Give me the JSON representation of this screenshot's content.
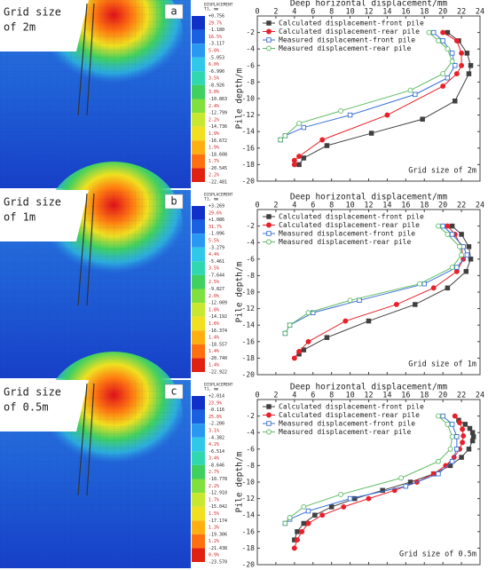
{
  "panels": [
    {
      "letter": "a",
      "label_lines": [
        "Grid size",
        "of 2m"
      ],
      "legend_header": [
        "DISPLACEMENT",
        "T1, mm"
      ],
      "legend_values": [
        "+0.756",
        "-1.180",
        "-3.117",
        "-5.053",
        "-6.990",
        "-8.926",
        "-10.863",
        "-12.799",
        "-14.736",
        "-16.672",
        "-18.608",
        "-20.545",
        "-22.481"
      ],
      "legend_percents": [
        "29.7%",
        "16.5%",
        "5.0%",
        "6.0%",
        "3.5%",
        "3.0%",
        "2.4%",
        "2.2%",
        "1.9%",
        "1.9%",
        "1.7%",
        "2.2%"
      ]
    },
    {
      "letter": "b",
      "label_lines": [
        "Grid size",
        "of 1m"
      ],
      "legend_header": [
        "DISPLACEMENT",
        "T1, mm"
      ],
      "legend_values": [
        "+3.269",
        "+1.086",
        "-1.096",
        "-3.279",
        "-5.461",
        "-7.644",
        "-9.827",
        "-12.009",
        "-14.192",
        "-16.374",
        "-18.557",
        "-20.740",
        "-22.922"
      ],
      "legend_percents": [
        "29.6%",
        "31.7%",
        "5.5%",
        "4.4%",
        "3.5%",
        "2.5%",
        "2.0%",
        "1.8%",
        "1.6%",
        "1.4%",
        "1.4%",
        "1.4%"
      ]
    },
    {
      "letter": "c",
      "label_lines": [
        "Grid size",
        "of 0.5m"
      ],
      "legend_header": [
        "DISPLACEMENT",
        "T1, mm"
      ],
      "legend_values": [
        "+2.014",
        "-0.116",
        "-2.200",
        "-4.382",
        "-6.514",
        "-8.646",
        "-10.778",
        "-12.910",
        "-15.042",
        "-17.174",
        "-19.306",
        "-21.438",
        "-23.570"
      ],
      "legend_percents": [
        "23.9%",
        "25.0%",
        "3.1%",
        "4.2%",
        "3.4%",
        "2.7%",
        "2.2%",
        "1.7%",
        "1.5%",
        "1.3%",
        "1.2%",
        "0.9%"
      ]
    }
  ],
  "chart_data": [
    {
      "type": "line",
      "title": "Deep horizontal displacement/mm",
      "y_label": "Pile depth/m",
      "annotation": "Grid size of 2m",
      "xlim": [
        0,
        24
      ],
      "xticks": [
        0,
        2,
        4,
        6,
        8,
        10,
        12,
        14,
        16,
        18,
        20,
        22,
        24
      ],
      "ylim": [
        -20,
        0
      ],
      "yticks": [
        -20,
        -18,
        -16,
        -14,
        -12,
        -10,
        -8,
        -6,
        -4,
        -2
      ],
      "legend": "upper left",
      "series": [
        {
          "name": "Calculated displacement-front pile",
          "color": "#404040",
          "marker": "square",
          "filled": true,
          "x": [
            20.5,
            21.7,
            22.6,
            23.0,
            22.8,
            21.3,
            17.8,
            12.3,
            7.5,
            5.0,
            4.5
          ],
          "values": [
            -2,
            -3,
            -4.5,
            -6,
            -7,
            -10.3,
            -12.5,
            -14.2,
            -15.7,
            -17.2,
            -18
          ]
        },
        {
          "name": "Calculated displacement-rear pile",
          "color": "#e8202a",
          "marker": "circle",
          "filled": true,
          "x": [
            20,
            21.5,
            22,
            22,
            21.5,
            20,
            14,
            7,
            4.5,
            4,
            4
          ],
          "values": [
            -2,
            -3,
            -4.5,
            -6,
            -7,
            -8.5,
            -12,
            -15,
            -17,
            -17.5,
            -18
          ]
        },
        {
          "name": "Measured displacement-front pile",
          "color": "#3a6fd8",
          "marker": "square",
          "filled": false,
          "x": [
            19,
            20,
            21,
            21.3,
            20.5,
            17,
            10,
            5,
            3,
            2.5
          ],
          "values": [
            -2,
            -3,
            -4.5,
            -6,
            -7.5,
            -9.5,
            -12,
            -13.5,
            -14.5,
            -15
          ]
        },
        {
          "name": "Measured displacement-rear pile",
          "color": "#5dbb63",
          "marker": "circle",
          "filled": false,
          "x": [
            18.5,
            19.5,
            20.5,
            21,
            20,
            16.5,
            9,
            4.5,
            3,
            2.5
          ],
          "values": [
            -2,
            -3,
            -4,
            -5.5,
            -7,
            -9,
            -11.5,
            -13,
            -14.5,
            -15
          ]
        }
      ]
    },
    {
      "type": "line",
      "title": "Deep horizontal displacement/mm",
      "y_label": "Pile depth/m",
      "annotation": "Grid size of 1m",
      "xlim": [
        0,
        24
      ],
      "xticks": [
        0,
        2,
        4,
        6,
        8,
        10,
        12,
        14,
        16,
        18,
        20,
        22,
        24
      ],
      "ylim": [
        -20,
        0
      ],
      "yticks": [
        -20,
        -18,
        -16,
        -14,
        -12,
        -10,
        -8,
        -6,
        -4,
        -2
      ],
      "legend": "upper left",
      "series": [
        {
          "name": "Calculated displacement-front pile",
          "color": "#404040",
          "marker": "square",
          "filled": true,
          "x": [
            21,
            22,
            22.8,
            23,
            22.5,
            20.5,
            17,
            12,
            7.5,
            5,
            4.5
          ],
          "values": [
            -2,
            -3,
            -4.5,
            -6,
            -7.5,
            -9.5,
            -11.5,
            -13.5,
            -15.5,
            -17,
            -17.5
          ]
        },
        {
          "name": "Calculated displacement-rear pile",
          "color": "#e8202a",
          "marker": "circle",
          "filled": true,
          "x": [
            20.5,
            21.3,
            22,
            22.2,
            21.5,
            19,
            15,
            9.5,
            5.5,
            4.5,
            4
          ],
          "values": [
            -2,
            -3,
            -4.5,
            -6,
            -7.5,
            -9.5,
            -11.5,
            -13.5,
            -16,
            -17.2,
            -18
          ]
        },
        {
          "name": "Measured displacement-front pile",
          "color": "#3a6fd8",
          "marker": "square",
          "filled": false,
          "x": [
            20,
            21,
            22.2,
            22.6,
            21.5,
            18,
            11,
            6,
            3.5,
            3
          ],
          "values": [
            -2,
            -3,
            -4.5,
            -5.5,
            -7,
            -9,
            -11,
            -12.5,
            -14,
            -15
          ]
        },
        {
          "name": "Measured displacement-rear pile",
          "color": "#5dbb63",
          "marker": "circle",
          "filled": false,
          "x": [
            19.5,
            20.5,
            21.8,
            22,
            21,
            17.5,
            10,
            5.5,
            3.5,
            3
          ],
          "values": [
            -2,
            -3,
            -4.5,
            -5.5,
            -7,
            -9,
            -11,
            -12.5,
            -14,
            -15
          ]
        }
      ]
    },
    {
      "type": "line",
      "title": "Deep horizontal displacement/mm",
      "y_label": "Pile depth/m",
      "annotation": "Grid size of 0.5m",
      "xlim": [
        0,
        24
      ],
      "xticks": [
        0,
        2,
        4,
        6,
        8,
        10,
        12,
        14,
        16,
        18,
        20,
        22,
        24
      ],
      "ylim": [
        -20,
        0
      ],
      "yticks": [
        -20,
        -18,
        -16,
        -14,
        -12,
        -10,
        -8,
        -6,
        -4,
        -2
      ],
      "legend": "upper left",
      "series": [
        {
          "name": "Calculated displacement-front pile",
          "color": "#404040",
          "marker": "square",
          "filled": true,
          "x": [
            21.7,
            22.4,
            22.9,
            23.2,
            23.3,
            23.2,
            22.8,
            22.0,
            20.8,
            19.0,
            16.5,
            13.5,
            10.5,
            8.0,
            6.2,
            5.0,
            4.3,
            4.0
          ],
          "values": [
            -2.5,
            -3,
            -3.5,
            -4,
            -4.5,
            -5,
            -6,
            -7,
            -8,
            -9,
            -10,
            -11,
            -12,
            -13,
            -14,
            -15,
            -16,
            -17
          ]
        },
        {
          "name": "Calculated displacement-rear pile",
          "color": "#e8202a",
          "marker": "circle",
          "filled": true,
          "x": [
            21.3,
            21.8,
            22.1,
            22.2,
            22.1,
            21.8,
            21.2,
            20.3,
            19.0,
            17.2,
            14.8,
            12.0,
            9.3,
            7.0,
            5.5,
            4.8,
            4.3,
            4.0
          ],
          "values": [
            -2,
            -2.8,
            -3.6,
            -4.4,
            -5.2,
            -6,
            -7,
            -8,
            -9,
            -10,
            -11,
            -12,
            -13,
            -14,
            -15,
            -16,
            -17,
            -18
          ]
        },
        {
          "name": "Measured displacement-front pile",
          "color": "#3a6fd8",
          "marker": "square",
          "filled": false,
          "x": [
            20,
            21,
            21.5,
            21.5,
            21,
            19.5,
            16,
            10,
            5.5,
            3.5,
            3
          ],
          "values": [
            -2,
            -3,
            -4.5,
            -6,
            -7.5,
            -9,
            -10.5,
            -12,
            -13.5,
            -14.5,
            -15
          ]
        },
        {
          "name": "Measured displacement-rear pile",
          "color": "#5dbb63",
          "marker": "circle",
          "filled": false,
          "x": [
            19.5,
            20.5,
            21,
            20.8,
            19.5,
            15.5,
            9,
            5,
            3.5,
            3
          ],
          "values": [
            -2,
            -3,
            -4.5,
            -6,
            -7.5,
            -9.5,
            -11.5,
            -13,
            -14.3,
            -15
          ]
        }
      ]
    }
  ]
}
